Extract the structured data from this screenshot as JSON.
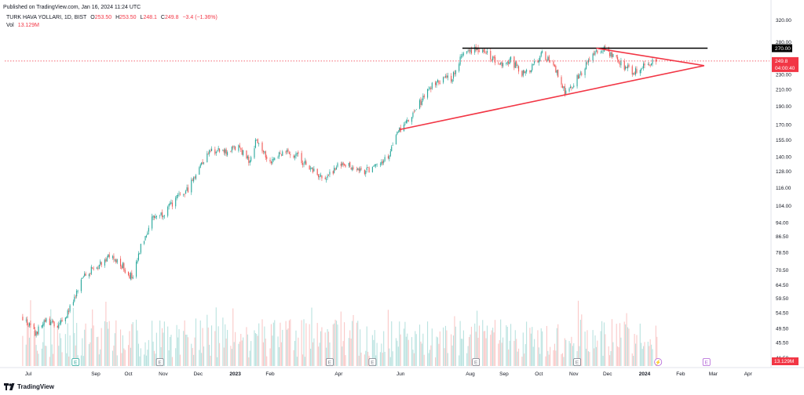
{
  "header": {
    "published": "Published on TradingView.com, Jan 16, 2024 11:24 UTC",
    "symbol": "TURK HAVA YOLLARI, 1D, BIST",
    "ohlc": {
      "o_label": "O",
      "o": "253.50",
      "h_label": "H",
      "h": "253.50",
      "l_label": "L",
      "l": "248.1",
      "c_label": "C",
      "c": "249.8",
      "change": "−3.4 (−1.36%)"
    },
    "vol_label": "Vol",
    "vol_value": "13.129M"
  },
  "footer": {
    "brand": "TradingView"
  },
  "colors": {
    "up": "#26a69a",
    "down": "#ef5350",
    "trend": "#f23645",
    "resistance": "#000000",
    "dotted": "#f23645",
    "event": "#787b86",
    "dividend": "#b05fd6"
  },
  "chart_data": {
    "type": "candlestick",
    "y_scale": "log",
    "ylim": [
      39.5,
      335
    ],
    "y_ticks": [
      "320.00",
      "280.00",
      "270.00",
      "250.00",
      "230.00",
      "210.00",
      "190.00",
      "170.00",
      "155.00",
      "140.00",
      "128.00",
      "116.00",
      "104.00",
      "94.00",
      "86.50",
      "78.50",
      "70.50",
      "64.50",
      "59.50",
      "54.50",
      "49.50",
      "45.50",
      "41.50"
    ],
    "x_labels": [
      "Jul",
      "Sep",
      "Oct",
      "Nov",
      "Dec",
      "2023",
      "Feb",
      "Apr",
      "Jun",
      "Aug",
      "Sep",
      "Oct",
      "Nov",
      "Dec",
      "2024",
      "Feb",
      "Mar",
      "Apr"
    ],
    "bold_x_labels": [
      "2023",
      "2024"
    ],
    "price_path": [
      [
        "2022-07-01",
        53
      ],
      [
        "2022-07-12",
        48
      ],
      [
        "2022-07-22",
        52
      ],
      [
        "2022-08-02",
        50
      ],
      [
        "2022-08-15",
        58
      ],
      [
        "2022-08-25",
        69
      ],
      [
        "2022-09-05",
        72
      ],
      [
        "2022-09-15",
        77
      ],
      [
        "2022-09-28",
        72
      ],
      [
        "2022-10-07",
        67
      ],
      [
        "2022-10-14",
        81
      ],
      [
        "2022-10-24",
        97
      ],
      [
        "2022-11-04",
        100
      ],
      [
        "2022-11-14",
        108
      ],
      [
        "2022-11-24",
        114
      ],
      [
        "2022-12-05",
        132
      ],
      [
        "2022-12-15",
        146
      ],
      [
        "2022-12-28",
        144
      ],
      [
        "2023-01-10",
        148
      ],
      [
        "2023-01-18",
        136
      ],
      [
        "2023-01-25",
        156
      ],
      [
        "2023-02-06",
        136
      ],
      [
        "2023-02-16",
        144
      ],
      [
        "2023-03-01",
        142
      ],
      [
        "2023-03-13",
        131
      ],
      [
        "2023-03-27",
        122
      ],
      [
        "2023-04-06",
        132
      ],
      [
        "2023-04-18",
        133
      ],
      [
        "2023-04-28",
        128
      ],
      [
        "2023-05-10",
        131
      ],
      [
        "2023-05-22",
        140
      ],
      [
        "2023-06-01",
        165
      ],
      [
        "2023-06-12",
        178
      ],
      [
        "2023-06-26",
        210
      ],
      [
        "2023-07-06",
        222
      ],
      [
        "2023-07-17",
        225
      ],
      [
        "2023-07-27",
        262
      ],
      [
        "2023-08-07",
        270
      ],
      [
        "2023-08-18",
        265
      ],
      [
        "2023-08-28",
        243
      ],
      [
        "2023-09-08",
        252
      ],
      [
        "2023-09-18",
        230
      ],
      [
        "2023-09-28",
        242
      ],
      [
        "2023-10-06",
        262
      ],
      [
        "2023-10-17",
        240
      ],
      [
        "2023-10-27",
        205
      ],
      [
        "2023-11-08",
        230
      ],
      [
        "2023-11-22",
        262
      ],
      [
        "2023-12-01",
        268
      ],
      [
        "2023-12-12",
        250
      ],
      [
        "2023-12-25",
        233
      ],
      [
        "2024-01-05",
        244
      ],
      [
        "2024-01-16",
        249.8
      ]
    ],
    "volume_range_M": [
      5,
      25
    ],
    "annotations": {
      "resistance_line": {
        "price": 270,
        "label": "270.00",
        "from": "2023-07-27",
        "to": "2024-03-01"
      },
      "lower_trendline": {
        "from": [
          "2023-06-01",
          165
        ],
        "to": [
          "2024-02-27",
          243
        ]
      },
      "upper_trendline": {
        "from": [
          "2023-11-23",
          270
        ],
        "to": [
          "2024-02-27",
          243
        ]
      },
      "last_price_line": {
        "price": 249.8
      }
    },
    "last_price_tag": {
      "price": "249.8",
      "countdown": "04:00:40"
    },
    "volume_tag": "13.129M",
    "events": [
      {
        "date": "2022-08-17",
        "letter": "E",
        "color": "#26a69a"
      },
      {
        "date": "2022-10-31",
        "letter": "E",
        "color": "#787b86"
      },
      {
        "date": "2023-03-31",
        "letter": "E",
        "color": "#787b86"
      },
      {
        "date": "2023-05-08",
        "letter": "E",
        "color": "#787b86"
      },
      {
        "date": "2023-08-08",
        "letter": "E",
        "color": "#787b86"
      },
      {
        "date": "2023-11-06",
        "letter": "E",
        "color": "#787b86"
      },
      {
        "date": "2024-01-17",
        "letter": "⚡",
        "color": "#b05fd6"
      },
      {
        "date": "2024-02-29",
        "letter": "E",
        "color": "#b05fd6"
      }
    ]
  }
}
